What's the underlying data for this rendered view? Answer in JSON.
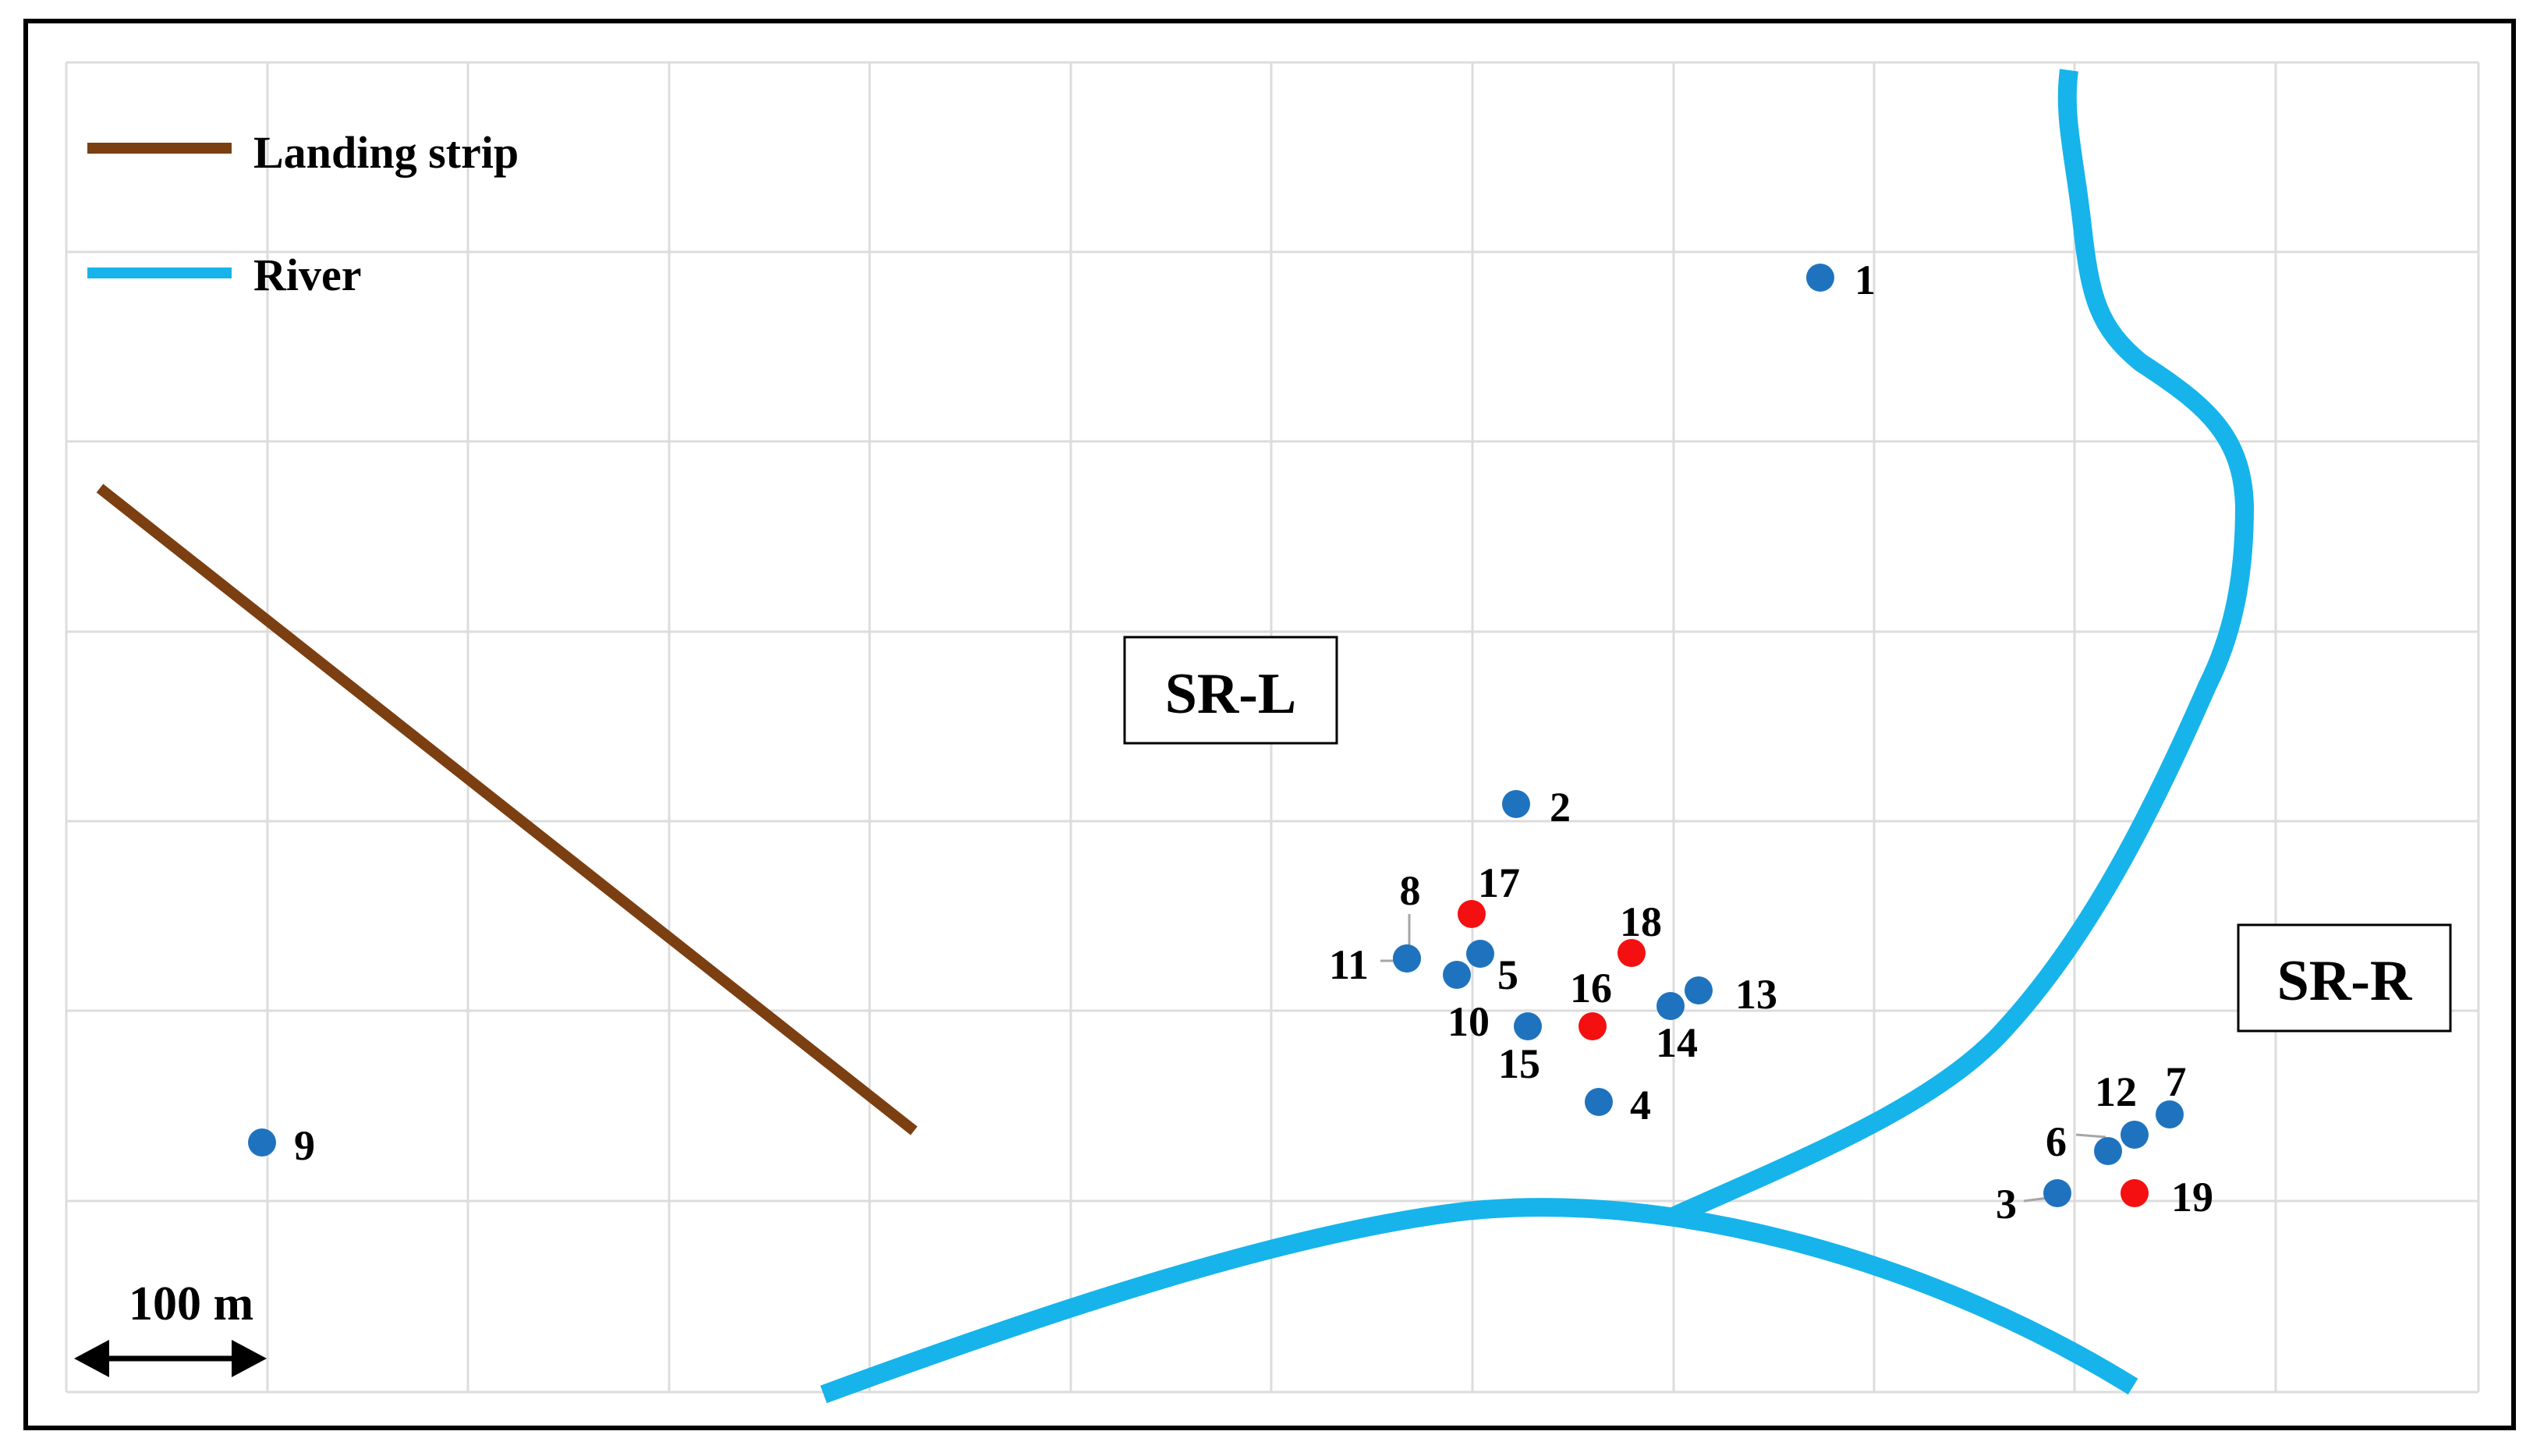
{
  "legend": {
    "items": [
      {
        "label": "Landing strip",
        "color": "#7B3F12"
      },
      {
        "label": "River",
        "color": "#16B4EA"
      }
    ]
  },
  "areas": {
    "left": "SR-L",
    "right": "SR-R"
  },
  "scale_bar": {
    "label": "100 m"
  },
  "colors": {
    "site_blue": "#1F73BE",
    "site_red": "#F41010",
    "grid": "#DCDCDC",
    "frame": "#000000"
  },
  "sites": [
    {
      "id": "1",
      "color": "blue"
    },
    {
      "id": "2",
      "color": "blue"
    },
    {
      "id": "3",
      "color": "blue"
    },
    {
      "id": "4",
      "color": "blue"
    },
    {
      "id": "5",
      "color": "blue"
    },
    {
      "id": "6",
      "color": "blue"
    },
    {
      "id": "7",
      "color": "blue"
    },
    {
      "id": "8",
      "color": "blue"
    },
    {
      "id": "9",
      "color": "blue"
    },
    {
      "id": "10",
      "color": "blue"
    },
    {
      "id": "11",
      "color": "blue"
    },
    {
      "id": "12",
      "color": "blue"
    },
    {
      "id": "13",
      "color": "blue"
    },
    {
      "id": "14",
      "color": "blue"
    },
    {
      "id": "15",
      "color": "blue"
    },
    {
      "id": "16",
      "color": "red"
    },
    {
      "id": "17",
      "color": "red"
    },
    {
      "id": "18",
      "color": "red"
    },
    {
      "id": "19",
      "color": "red"
    }
  ]
}
